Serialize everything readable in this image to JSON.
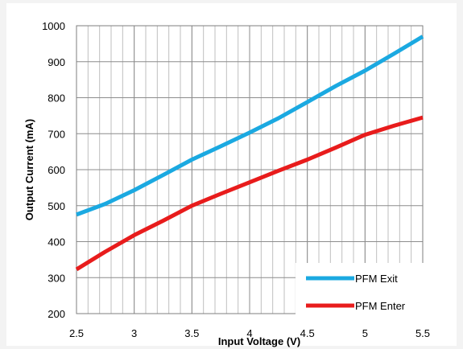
{
  "chart_data": {
    "type": "line",
    "xlabel": "Input Voltage (V)",
    "ylabel": "Output Current (mA)",
    "xlim": [
      2.5,
      5.5
    ],
    "ylim": [
      200,
      1000
    ],
    "x_ticks": [
      "2.5",
      "3",
      "3.5",
      "4",
      "4.5",
      "5",
      "5.5"
    ],
    "y_ticks": [
      "200",
      "300",
      "400",
      "500",
      "600",
      "700",
      "800",
      "900",
      "1000"
    ],
    "x_minor_step": 0.1,
    "grid": true,
    "legend_position": "bottom-right",
    "series": [
      {
        "name": "PFM Exit",
        "color": "#1BA9E1",
        "x": [
          2.5,
          2.75,
          3.0,
          3.25,
          3.5,
          3.75,
          4.0,
          4.25,
          4.5,
          4.75,
          5.0,
          5.25,
          5.5
        ],
        "y": [
          475,
          505,
          543,
          585,
          628,
          665,
          703,
          743,
          788,
          833,
          875,
          922,
          970
        ]
      },
      {
        "name": "PFM Enter",
        "color": "#E81C1C",
        "x": [
          2.5,
          2.75,
          3.0,
          3.25,
          3.5,
          3.75,
          4.0,
          4.25,
          4.5,
          4.75,
          5.0,
          5.25,
          5.5
        ],
        "y": [
          323,
          372,
          418,
          458,
          500,
          533,
          565,
          597,
          628,
          662,
          697,
          722,
          745
        ]
      }
    ]
  }
}
